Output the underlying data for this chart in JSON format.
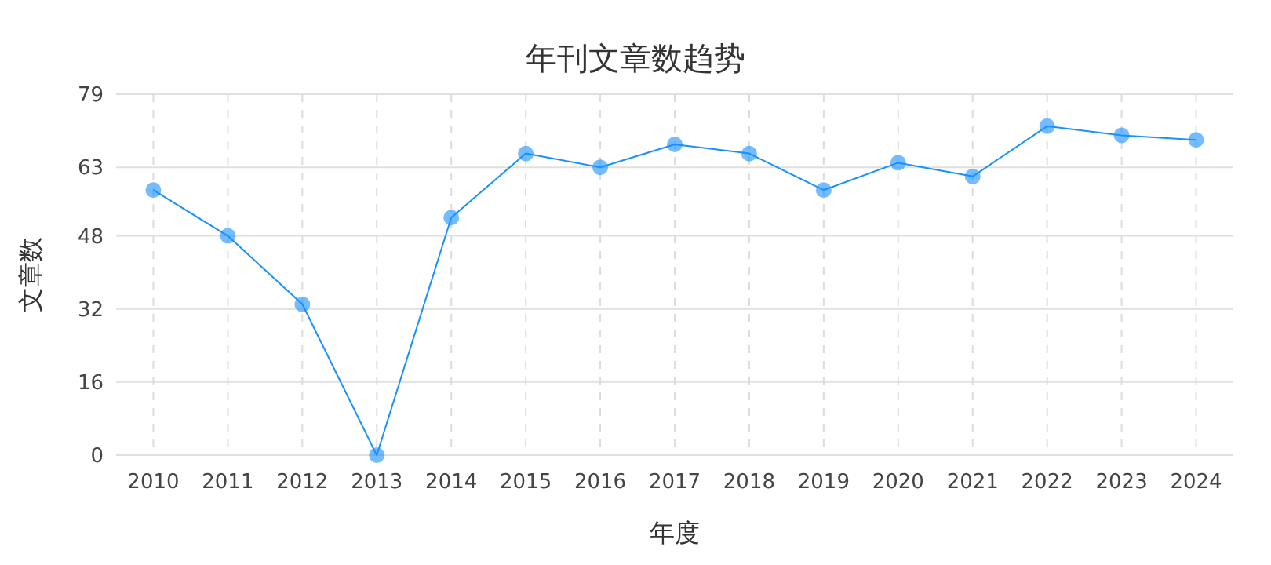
{
  "chart_data": {
    "type": "line",
    "title": "年刊文章数趋势",
    "xlabel": "年度",
    "ylabel": "文章数",
    "categories": [
      "2010",
      "2011",
      "2012",
      "2013",
      "2014",
      "2015",
      "2016",
      "2017",
      "2018",
      "2019",
      "2020",
      "2021",
      "2022",
      "2023",
      "2024"
    ],
    "series": [
      {
        "color": "#1890ff",
        "values": [
          58,
          48,
          33,
          0,
          52,
          66,
          63,
          68,
          66,
          58,
          64,
          61,
          72,
          70,
          69
        ]
      }
    ],
    "ylim": [
      0,
      79
    ],
    "yticks": [
      0,
      16,
      32,
      48,
      63,
      79
    ],
    "grid": true,
    "marker": "circle",
    "line_style": "solid"
  }
}
